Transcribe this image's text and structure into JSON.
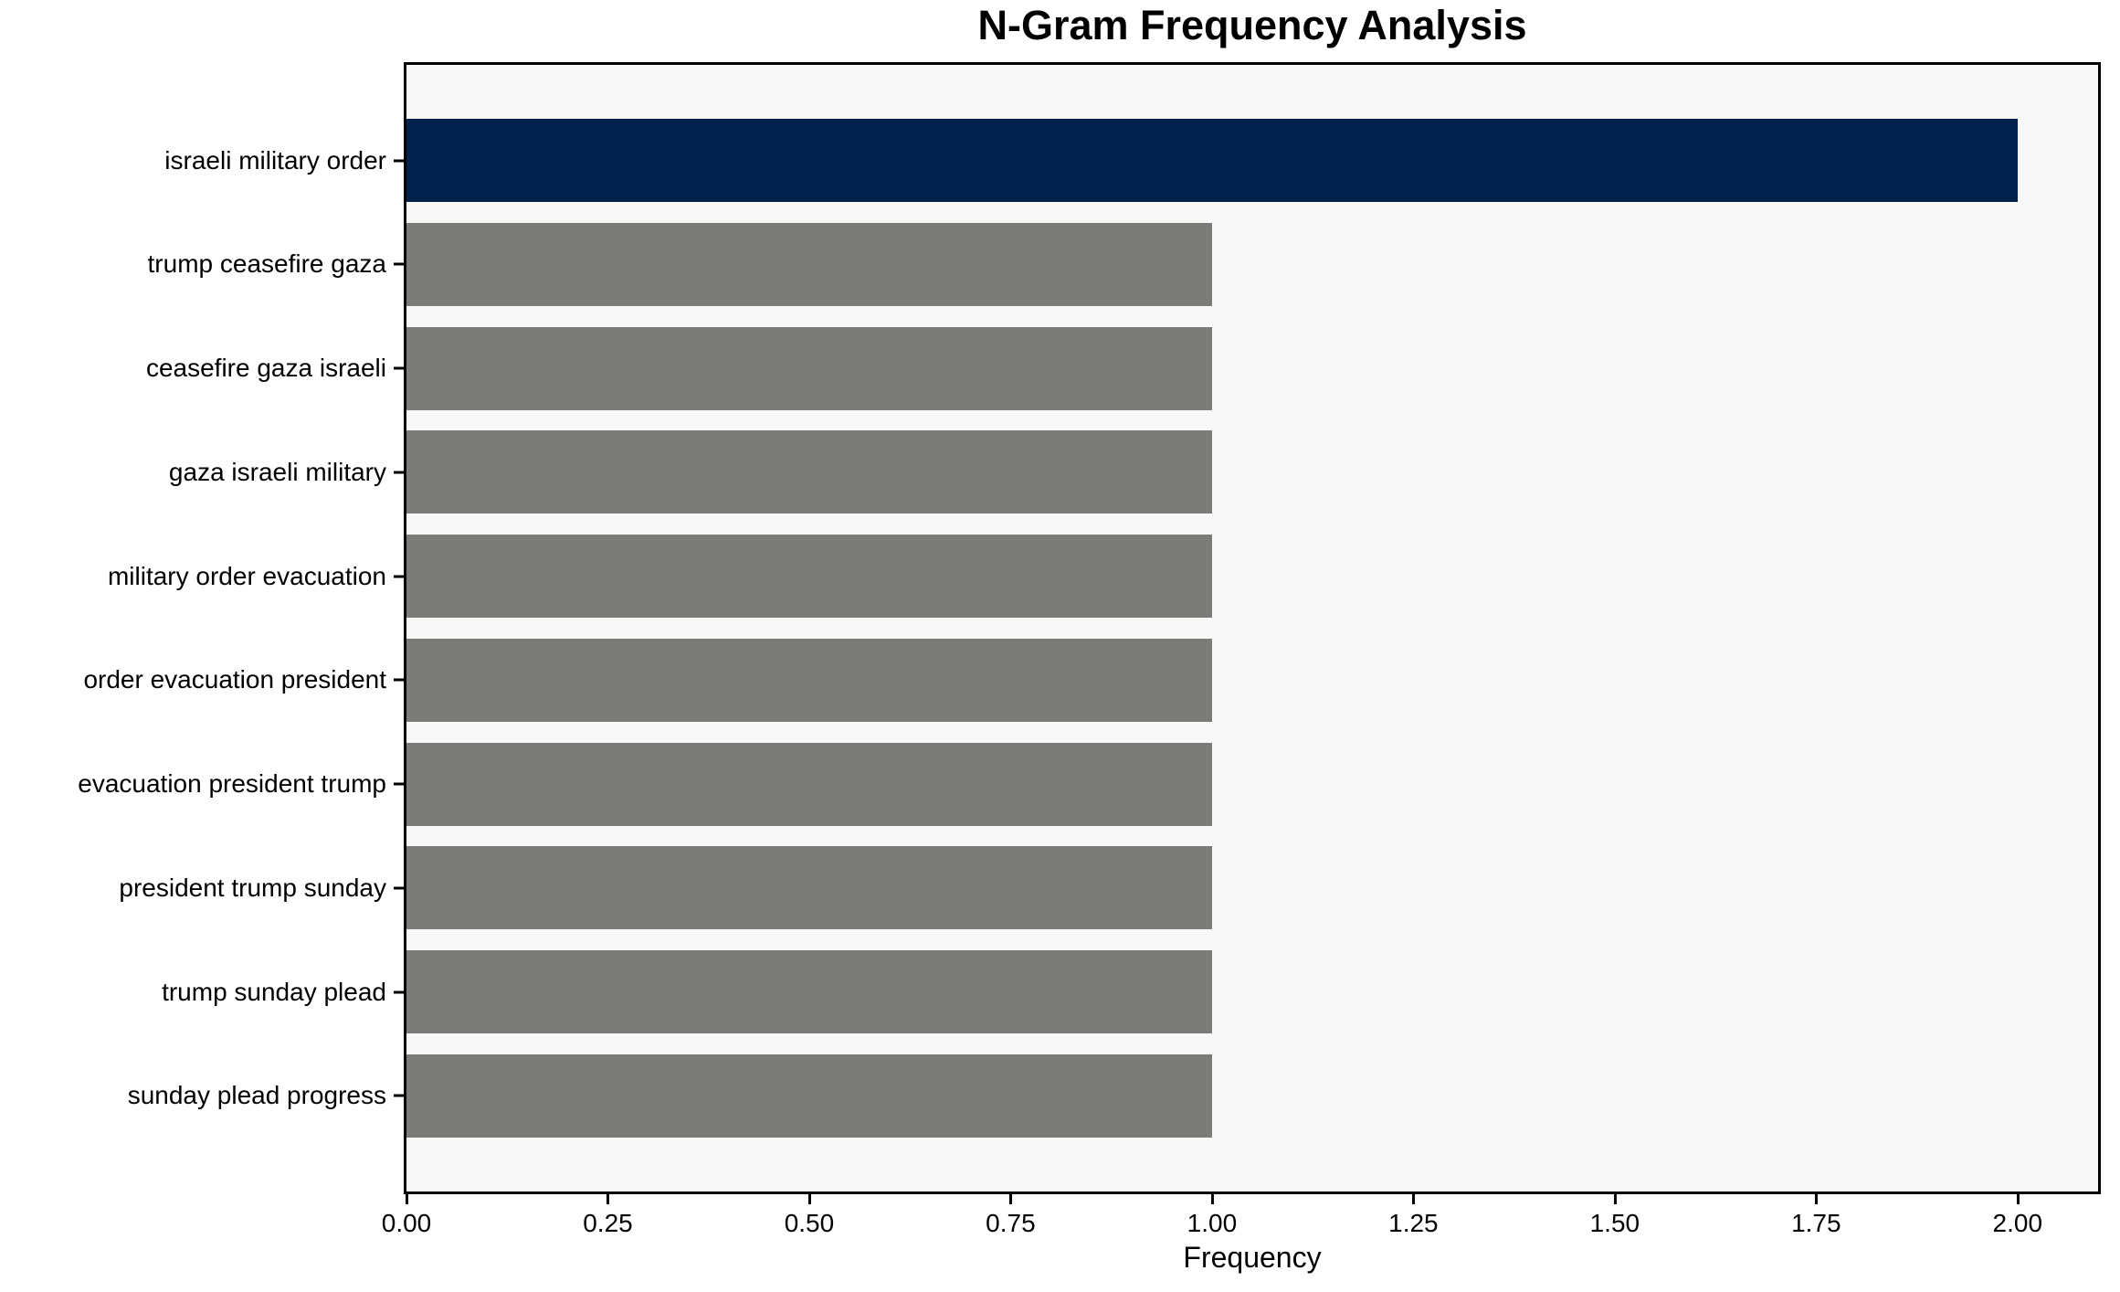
{
  "chart_data": {
    "type": "bar",
    "orientation": "horizontal",
    "title": "N-Gram Frequency Analysis",
    "xlabel": "Frequency",
    "ylabel": "",
    "categories": [
      "israeli military order",
      "trump ceasefire gaza",
      "ceasefire gaza israeli",
      "gaza israeli military",
      "military order evacuation",
      "order evacuation president",
      "evacuation president trump",
      "president trump sunday",
      "trump sunday plead",
      "sunday plead progress"
    ],
    "values": [
      2,
      1,
      1,
      1,
      1,
      1,
      1,
      1,
      1,
      1
    ],
    "bar_colors": [
      "#01224C",
      "#7B7B78",
      "#7B7B78",
      "#7B7B78",
      "#7B7B78",
      "#7B7B78",
      "#7B7B78",
      "#7B7B78",
      "#7B7B78",
      "#7B7B78"
    ],
    "xlim": [
      0,
      2.1
    ],
    "xticks": {
      "values": [
        0,
        0.25,
        0.5,
        0.75,
        1,
        1.25,
        1.5,
        1.75,
        2
      ],
      "labels": [
        "0.00",
        "0.25",
        "0.50",
        "0.75",
        "1.00",
        "1.25",
        "1.50",
        "1.75",
        "2.00"
      ]
    },
    "grid": false,
    "legend": null,
    "colors": {
      "highlight_bar": "#01224C",
      "default_bar": "#7B7B78",
      "plot_background": "#F8F8F8",
      "figure_background": "#FFFFFF",
      "frame": "#000000",
      "text": "#000000"
    }
  }
}
